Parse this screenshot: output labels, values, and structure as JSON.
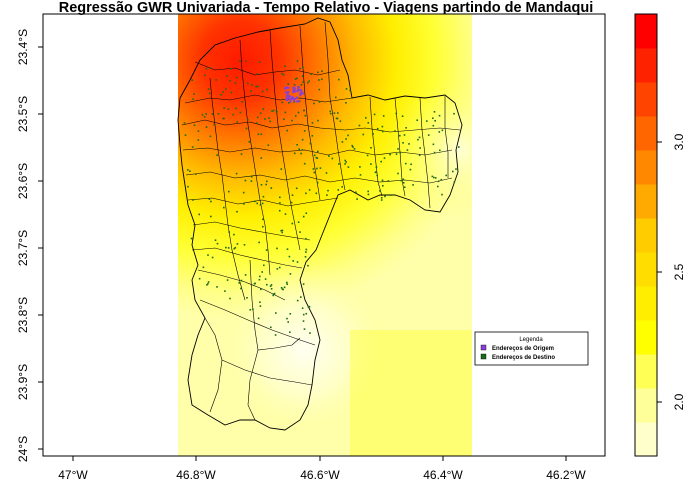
{
  "title": "Regressão GWR Univariada - Tempo Relativo - Viagens partindo de Mandaqui",
  "axes": {
    "x_ticks": [
      "47°W",
      "46.8°W",
      "46.6°W",
      "46.4°W",
      "46.2°W"
    ],
    "y_ticks": [
      "23.4°S",
      "23.5°S",
      "23.6°S",
      "23.7°S",
      "23.8°S",
      "23.9°S",
      "24°S"
    ]
  },
  "legend": {
    "title": "Legenda",
    "items": [
      {
        "label": "Endereços de Origem",
        "color": "#8b3fd9"
      },
      {
        "label": "Endereços de Destino",
        "color": "#1a6b1a"
      }
    ]
  },
  "colorbar": {
    "ticks": [
      "2.0",
      "2.5",
      "3.0"
    ],
    "colors": [
      "#ffffcc",
      "#ffff99",
      "#ffff55",
      "#ffff00",
      "#ffee00",
      "#ffdd00",
      "#ffcc00",
      "#ffaa00",
      "#ff8800",
      "#ff6600",
      "#ff4400",
      "#ff2200",
      "#ff0000"
    ]
  }
}
